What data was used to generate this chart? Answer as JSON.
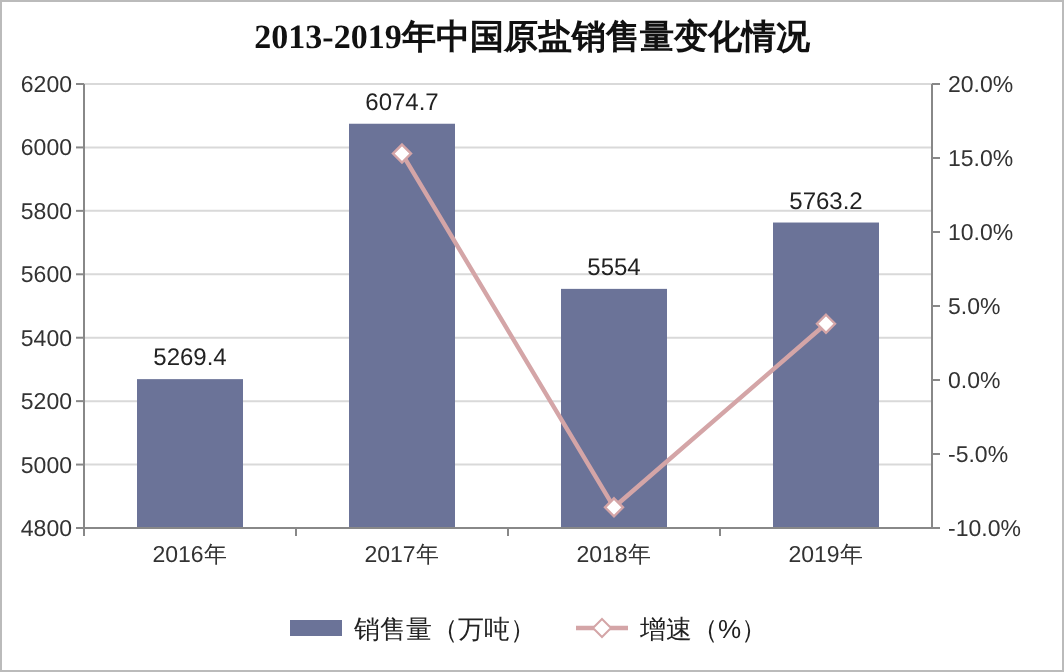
{
  "chart_data": {
    "type": "bar",
    "title": "2013-2019年中国原盐销售量变化情况",
    "categories": [
      "2016年",
      "2017年",
      "2018年",
      "2019年"
    ],
    "series": [
      {
        "name": "销售量（万吨）",
        "color": "#6b7398",
        "values": [
          5269.4,
          6074.7,
          5554,
          5763.2
        ],
        "value_labels": [
          "5269.4",
          "6074.7",
          "5554",
          "5763.2"
        ]
      },
      {
        "name": "增速（%）",
        "type": "line",
        "axis": "y2",
        "color": "#d4a5a7",
        "marker": "diamond",
        "values": [
          null,
          15.3,
          -8.6,
          3.8
        ]
      }
    ],
    "ylim": [
      4800,
      6200
    ],
    "yticks": [
      4800,
      5000,
      5200,
      5400,
      5600,
      5800,
      6000,
      6200
    ],
    "y2lim": [
      -10,
      20
    ],
    "y2ticks": [
      {
        "value": -10,
        "label": "-10.0%"
      },
      {
        "value": -5,
        "label": "-5.0%"
      },
      {
        "value": 0,
        "label": "0.0%"
      },
      {
        "value": 5,
        "label": "5.0%"
      },
      {
        "value": 10,
        "label": "10.0%"
      },
      {
        "value": 15,
        "label": "15.0%"
      },
      {
        "value": 20,
        "label": "20.0%"
      }
    ],
    "grid": "y",
    "legend": "bottom"
  }
}
